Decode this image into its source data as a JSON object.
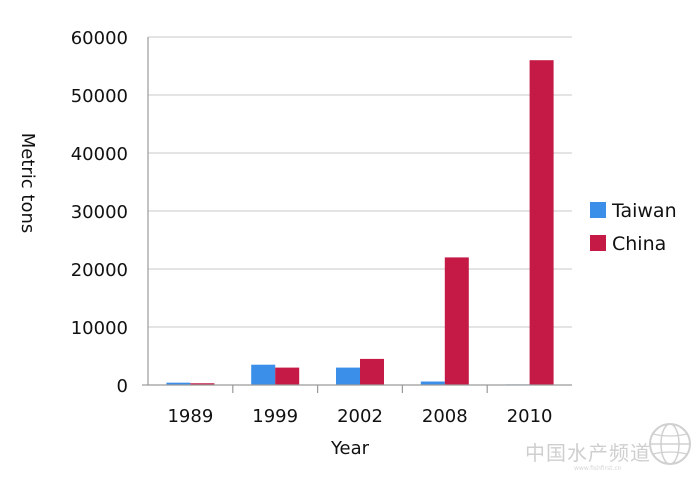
{
  "chart_data": {
    "type": "bar",
    "categories": [
      "1989",
      "1999",
      "2002",
      "2008",
      "2010"
    ],
    "series": [
      {
        "name": "Taiwan",
        "color": "#3b8fe8",
        "values": [
          400,
          3500,
          3000,
          600,
          100
        ]
      },
      {
        "name": "China",
        "color": "#c41a45",
        "values": [
          300,
          3000,
          4500,
          22000,
          56000
        ]
      }
    ],
    "title": "",
    "xlabel": "Year",
    "ylabel": "Metric tons",
    "ylim": [
      0,
      60000
    ],
    "yticks": [
      "0",
      "10000",
      "20000",
      "30000",
      "40000",
      "50000",
      "60000"
    ],
    "grid": true,
    "legend_position": "right"
  },
  "watermark": {
    "text": "中国水产频道",
    "subtext": "www.fishfirst.cn"
  },
  "colors": {
    "gridline": "#c8c8c8",
    "axis": "#9a9a9a"
  }
}
